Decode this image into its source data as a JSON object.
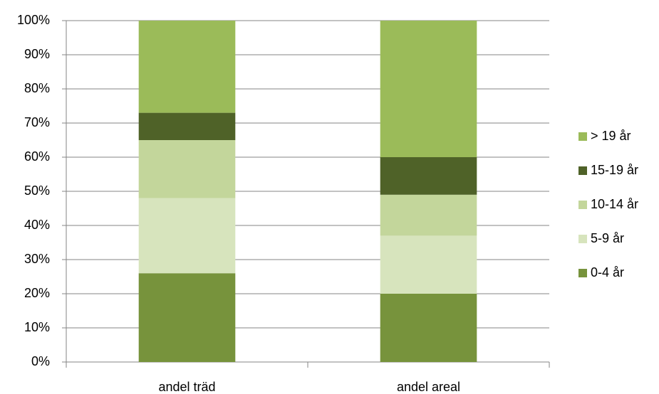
{
  "chart_data": {
    "type": "stacked_bar",
    "categories": [
      "andel träd",
      "andel areal"
    ],
    "series": [
      {
        "name": "0-4 år",
        "color": "#77933c",
        "values": [
          26,
          20
        ]
      },
      {
        "name": "5-9 år",
        "color": "#d7e4bd",
        "values": [
          22,
          17
        ]
      },
      {
        "name": "10-14 år",
        "color": "#c3d69b",
        "values": [
          17,
          12
        ]
      },
      {
        "name": "15-19 år",
        "color": "#4f6228",
        "values": [
          8,
          11
        ]
      },
      {
        "name": "> 19 år",
        "color": "#9bbb59",
        "values": [
          27,
          40
        ]
      }
    ],
    "ylim": [
      0,
      100
    ],
    "yticks": [
      {
        "value": 0,
        "label": "0%"
      },
      {
        "value": 10,
        "label": "10%"
      },
      {
        "value": 20,
        "label": "20%"
      },
      {
        "value": 30,
        "label": "30%"
      },
      {
        "value": 40,
        "label": "40%"
      },
      {
        "value": 50,
        "label": "50%"
      },
      {
        "value": 60,
        "label": "60%"
      },
      {
        "value": 70,
        "label": "70%"
      },
      {
        "value": 80,
        "label": "80%"
      },
      {
        "value": 90,
        "label": "90%"
      },
      {
        "value": 100,
        "label": "100%"
      }
    ],
    "grid": true,
    "legend": "right"
  }
}
